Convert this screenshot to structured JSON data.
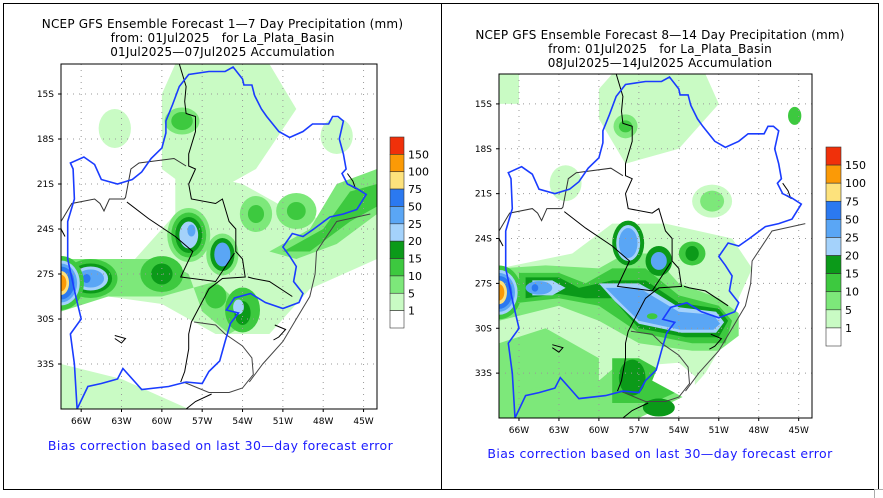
{
  "chart_data": [
    {
      "type": "heatmap",
      "title": "NCEP GFS Ensemble Forecast 1-7 Day Precipitation (mm)",
      "subtitle_lines": [
        "from: 01Jul2025   for La_Plata_Basin",
        "01Jul2025—07Jul2025 Accumulation"
      ],
      "title_line1": "NCEP GFS Ensemble Forecast 1—7 Day Precipitation (mm)",
      "title_line2": "from: 01Jul2025   for La_Plata_Basin",
      "title_line3": "01Jul2025—07Jul2025 Accumulation",
      "x_ticks": [
        "66W",
        "63W",
        "60W",
        "57W",
        "54W",
        "51W",
        "48W",
        "45W"
      ],
      "y_ticks": [
        "15S",
        "18S",
        "21S",
        "24S",
        "27S",
        "30S",
        "33S"
      ],
      "x_range": [
        -67.5,
        -44
      ],
      "y_range": [
        -36,
        -13
      ],
      "grid": true,
      "legend_levels": [
        "150",
        "100",
        "75",
        "50",
        "25",
        "20",
        "15",
        "10",
        "5",
        "1"
      ],
      "legend_colors": [
        "#f0300a",
        "#fb9a06",
        "#fde27c",
        "#2b79f0",
        "#5aa6f5",
        "#a4d2fb",
        "#0b9a19",
        "#3dc93f",
        "#7de87a",
        "#c9fbc4",
        "#ffffff"
      ],
      "note": "Bias correction based on last 30—day forecast error",
      "max_features": [
        {
          "lon": -67.3,
          "lat": -27.5,
          "level_mm": "75-150"
        },
        {
          "lon": -65.5,
          "lat": -27.3,
          "level_mm": "25-50"
        },
        {
          "lon": -57.8,
          "lat": -24.3,
          "level_mm": "25-50"
        },
        {
          "lon": -55.5,
          "lat": -25.7,
          "level_mm": "25-50"
        },
        {
          "lon": -54,
          "lat": -29.5,
          "level_mm": "20-25"
        },
        {
          "lon": -60,
          "lat": -27.0,
          "level_mm": "15-20"
        }
      ]
    },
    {
      "type": "heatmap",
      "title": "NCEP GFS Ensemble Forecast 8-14 Day Precipitation (mm)",
      "title_line1": "NCEP GFS Ensemble Forecast 8—14 Day Precipitation (mm)",
      "title_line2": "from: 01Jul2025   for La_Plata_Basin",
      "title_line3": "08Jul2025—14Jul2025 Accumulation",
      "x_ticks": [
        "66W",
        "63W",
        "60W",
        "57W",
        "54W",
        "51W",
        "48W",
        "45W"
      ],
      "y_ticks": [
        "15S",
        "18S",
        "21S",
        "24S",
        "27S",
        "30S",
        "33S"
      ],
      "x_range": [
        -67.5,
        -44
      ],
      "y_range": [
        -36,
        -13
      ],
      "grid": true,
      "legend_levels": [
        "150",
        "100",
        "75",
        "50",
        "25",
        "20",
        "15",
        "10",
        "5",
        "1"
      ],
      "legend_colors": [
        "#f0300a",
        "#fb9a06",
        "#fde27c",
        "#2b79f0",
        "#5aa6f5",
        "#a4d2fb",
        "#0b9a19",
        "#3dc93f",
        "#7de87a",
        "#c9fbc4",
        "#ffffff"
      ],
      "note": "Bias correction based on last 30—day forecast error",
      "max_features": [
        {
          "lon": -67.3,
          "lat": -27.5,
          "level_mm": "75-150"
        },
        {
          "lon": -65.5,
          "lat": -27.3,
          "level_mm": "25-50"
        },
        {
          "lon": -57.8,
          "lat": -24.3,
          "level_mm": "25-50"
        },
        {
          "lon": -55,
          "lat": -29.3,
          "level_mm": "25-50"
        },
        {
          "lon": -58.5,
          "lat": -28.0,
          "level_mm": "20-25"
        },
        {
          "lon": -57,
          "lat": -33.5,
          "level_mm": "15-20"
        }
      ]
    }
  ]
}
